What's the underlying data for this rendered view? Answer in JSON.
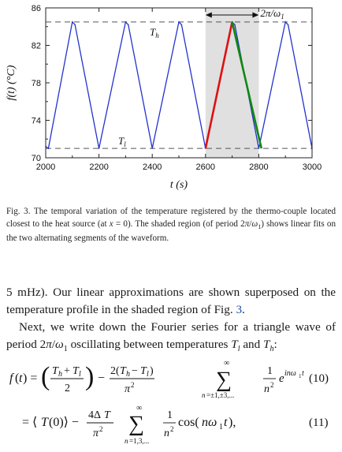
{
  "chart_data": {
    "type": "line",
    "xlabel": "t (s)",
    "ylabel": "f(t) (°C)",
    "xlim": [
      2000,
      3000
    ],
    "ylim": [
      70,
      86
    ],
    "xticks": [
      2000,
      2200,
      2400,
      2600,
      2800,
      3000
    ],
    "yticks": [
      70,
      74,
      78,
      82,
      86
    ],
    "grid": false,
    "series": [
      {
        "color": "#2233cc",
        "points": [
          [
            2000,
            71.2
          ],
          [
            2010,
            71.0
          ],
          [
            2100,
            84.5
          ],
          [
            2110,
            84.2
          ],
          [
            2200,
            71.0
          ],
          [
            2300,
            84.5
          ],
          [
            2310,
            84.2
          ],
          [
            2400,
            71.0
          ],
          [
            2500,
            84.5
          ],
          [
            2510,
            84.2
          ],
          [
            2600,
            71.0
          ],
          [
            2700,
            84.5
          ],
          [
            2710,
            84.2
          ],
          [
            2800,
            71.0
          ],
          [
            2900,
            84.5
          ],
          [
            2910,
            84.2
          ],
          [
            3000,
            71.0
          ]
        ]
      }
    ],
    "fits": [
      {
        "color": "#dd1111",
        "points": [
          [
            2600,
            71.0
          ],
          [
            2700,
            84.5
          ]
        ]
      },
      {
        "color": "#118811",
        "points": [
          [
            2700,
            84.5
          ],
          [
            2810,
            71.0
          ]
        ]
      }
    ],
    "reference_lines": [
      {
        "y": 84.5,
        "label": "T_h"
      },
      {
        "y": 71.0,
        "label": "T_l"
      }
    ],
    "shaded_region": [
      2600,
      2800
    ],
    "period_annotation": {
      "x": [
        2600,
        2800
      ],
      "label": "2π/ω₁"
    }
  },
  "caption": {
    "prefix": "Fig. 3. The temporal variation of the temperature registered by the thermo-couple located closest to the heat source (at x = 0). The shaded region (of period 2π/ω₁) shows linear fits on the two alternating segments of the waveform."
  },
  "para1": {
    "text_a": "5 mHz). Our linear approximations are shown superposed on the temperature profile in the shaded region of Fig. ",
    "ref": "3",
    "text_b": "."
  },
  "para2": {
    "text": "Next, we write down the Fourier series for a triangle wave of period 2π/ω₁ oscillating between temperatures T_l and T_h:"
  },
  "eq10": {
    "number": "(10)"
  },
  "eq11": {
    "number": "(11)"
  }
}
